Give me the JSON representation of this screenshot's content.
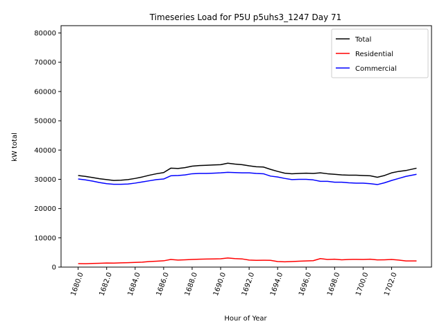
{
  "chart_data": {
    "type": "line",
    "title": "Timeseries Load for P5U p5uhs3_1247  Day 71",
    "xlabel": "Hour of Year",
    "ylabel": "kW total",
    "xlim": [
      1678.8,
      1704.8
    ],
    "ylim": [
      0,
      82500
    ],
    "grid": false,
    "legend_position": "top-right",
    "x_ticks": [
      1680,
      1682,
      1684,
      1686,
      1688,
      1690,
      1692,
      1694,
      1696,
      1698,
      1700,
      1702
    ],
    "x_tick_labels": [
      "1680.0",
      "1682.0",
      "1684.0",
      "1686.0",
      "1688.0",
      "1690.0",
      "1692.0",
      "1694.0",
      "1696.0",
      "1698.0",
      "1700.0",
      "1702.0"
    ],
    "y_ticks": [
      0,
      10000,
      20000,
      30000,
      40000,
      50000,
      60000,
      70000,
      80000
    ],
    "y_tick_labels": [
      "0",
      "10000",
      "20000",
      "30000",
      "40000",
      "50000",
      "60000",
      "70000",
      "80000"
    ],
    "x": [
      1680,
      1680.5,
      1681,
      1681.5,
      1682,
      1682.5,
      1683,
      1683.5,
      1684,
      1684.5,
      1685,
      1685.5,
      1686,
      1686.5,
      1687,
      1687.5,
      1688,
      1688.5,
      1689,
      1689.5,
      1690,
      1690.5,
      1691,
      1691.5,
      1692,
      1692.5,
      1693,
      1693.5,
      1694,
      1694.5,
      1695,
      1695.5,
      1696,
      1696.5,
      1697,
      1697.5,
      1698,
      1698.5,
      1699,
      1699.5,
      1700,
      1700.5,
      1701,
      1701.5,
      1702,
      1702.5,
      1703,
      1703.75
    ],
    "series": [
      {
        "name": "Total",
        "color": "#000000",
        "values": [
          31300,
          31000,
          30600,
          30200,
          29900,
          29600,
          29700,
          29900,
          30300,
          30800,
          31400,
          31900,
          32300,
          33800,
          33700,
          34000,
          34500,
          34700,
          34800,
          34900,
          35000,
          35500,
          35200,
          35000,
          34600,
          34300,
          34200,
          33400,
          32700,
          32100,
          31900,
          32000,
          32100,
          32000,
          32200,
          31900,
          31700,
          31500,
          31400,
          31400,
          31300,
          31200,
          30700,
          31300,
          32200,
          32700,
          33000,
          33800
        ]
      },
      {
        "name": "Residential",
        "color": "#ff0000",
        "values": [
          1200,
          1150,
          1250,
          1300,
          1400,
          1350,
          1450,
          1500,
          1600,
          1700,
          1900,
          2000,
          2150,
          2600,
          2400,
          2500,
          2600,
          2700,
          2750,
          2800,
          2850,
          3100,
          2900,
          2800,
          2400,
          2300,
          2350,
          2300,
          1900,
          1800,
          1900,
          2000,
          2100,
          2200,
          2900,
          2600,
          2700,
          2500,
          2600,
          2650,
          2600,
          2700,
          2450,
          2500,
          2600,
          2400,
          2100,
          2100
        ]
      },
      {
        "name": "Commercial",
        "color": "#0000ff",
        "values": [
          30100,
          29800,
          29400,
          28900,
          28500,
          28300,
          28300,
          28400,
          28700,
          29100,
          29500,
          29900,
          30100,
          31200,
          31300,
          31500,
          31900,
          32000,
          32000,
          32100,
          32200,
          32400,
          32300,
          32200,
          32200,
          32000,
          31900,
          31100,
          30800,
          30300,
          29900,
          30000,
          30000,
          29800,
          29300,
          29300,
          29000,
          29000,
          28800,
          28700,
          28700,
          28500,
          28200,
          28800,
          29600,
          30300,
          31000,
          31700
        ]
      }
    ]
  }
}
